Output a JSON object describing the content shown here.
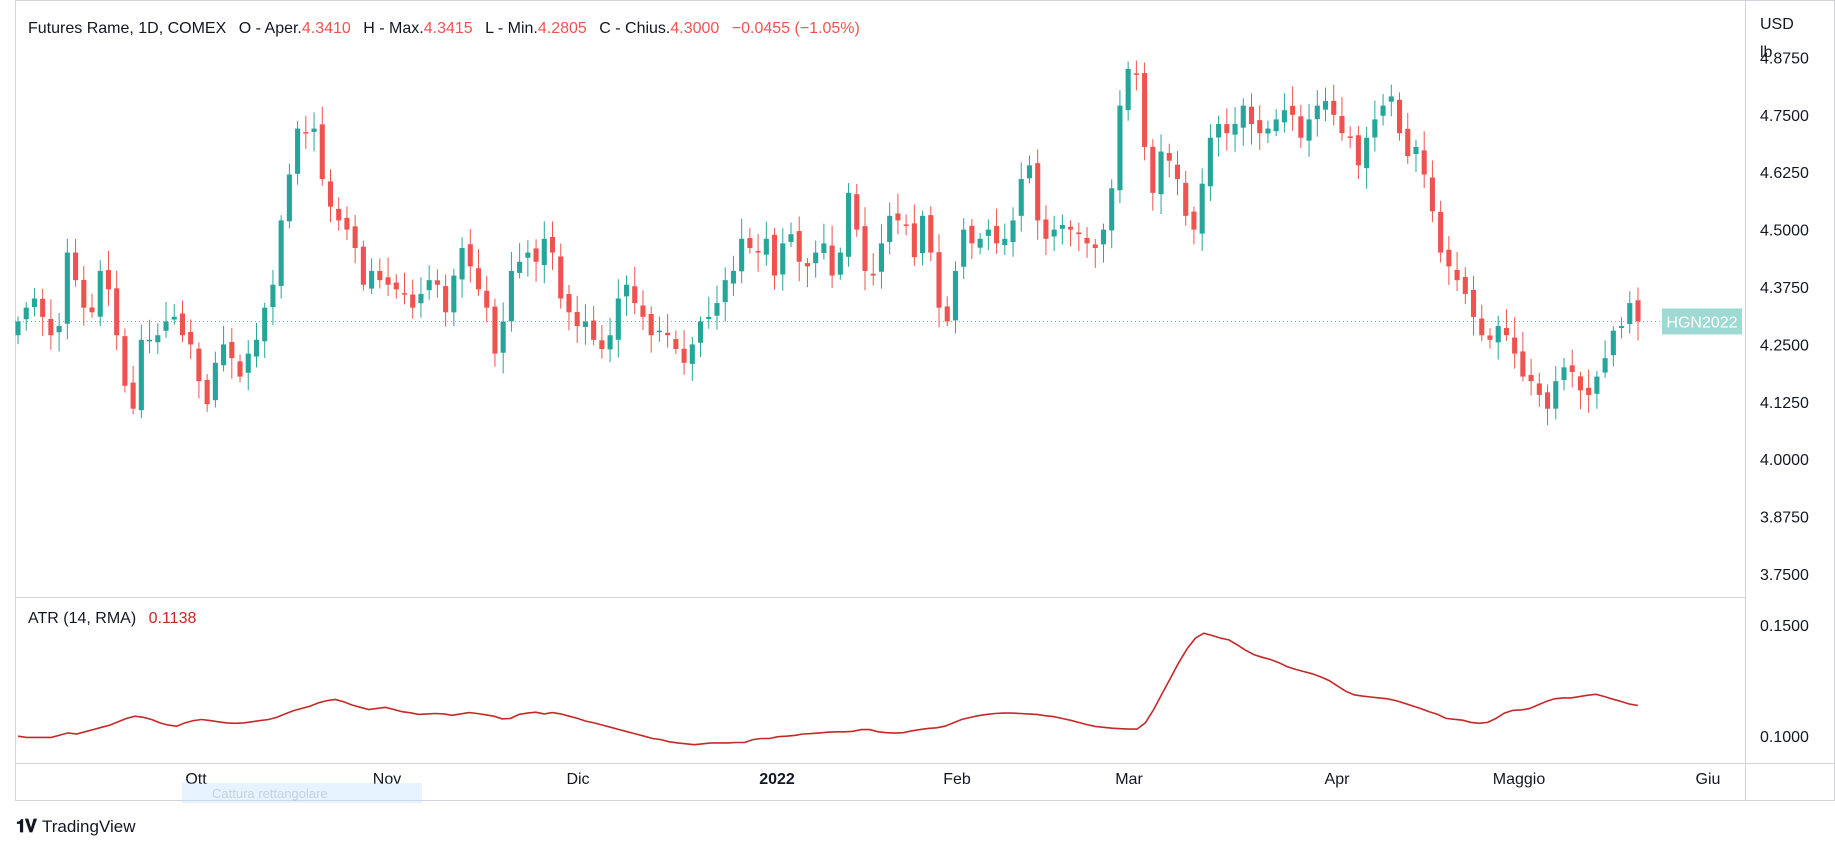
{
  "legend": {
    "symbol": "Futures Rame, 1D, COMEX",
    "o_label": "O - Aper.",
    "o_val": "4.3410",
    "h_label": "H - Max.",
    "h_val": "4.3415",
    "l_label": "L - Min.",
    "l_val": "4.2805",
    "c_label": "C - Chius.",
    "c_val": "4.3000",
    "change": "−0.0455 (−1.05%)"
  },
  "price_axis": {
    "unit_top": "USD",
    "unit_bottom": "lb",
    "ticks": [
      "4.8750",
      "4.7500",
      "4.6250",
      "4.5000",
      "4.3750",
      "4.2500",
      "4.1250",
      "4.0000",
      "3.8750",
      "3.7500"
    ]
  },
  "atr": {
    "label": "ATR (14, RMA)",
    "value": "0.1138",
    "ticks": [
      "0.1500",
      "0.1000"
    ]
  },
  "time_axis": {
    "labels": [
      "Ott",
      "Nov",
      "Dic",
      "2022",
      "Feb",
      "Mar",
      "Apr",
      "Maggio",
      "Giu"
    ]
  },
  "price_tag": "HGN2022",
  "watermark": "Cattura rettangolare",
  "brand": "TradingView",
  "colors": {
    "up": "#26a69a",
    "down": "#ef5350",
    "atr": "#c62828",
    "tag_bg": "#9fd9d3"
  },
  "chart_data": [
    {
      "type": "candlestick",
      "title": "Futures Rame, 1D, COMEX",
      "ylim": [
        3.7,
        5.0
      ],
      "y_ticks": [
        3.75,
        3.875,
        4.0,
        4.125,
        4.25,
        4.375,
        4.5,
        4.625,
        4.75,
        4.875
      ],
      "last_close": 4.3,
      "close": [
        4.3,
        4.33,
        4.35,
        4.31,
        4.27,
        4.29,
        4.45,
        4.39,
        4.33,
        4.32,
        4.41,
        4.37,
        4.27,
        4.16,
        4.11,
        4.26,
        4.26,
        4.27,
        4.3,
        4.31,
        4.27,
        4.25,
        4.17,
        4.12,
        4.21,
        4.25,
        4.22,
        4.18,
        4.23,
        4.26,
        4.33,
        4.38,
        4.52,
        4.62,
        4.72,
        4.71,
        4.72,
        4.61,
        4.55,
        4.52,
        4.5,
        4.46,
        4.38,
        4.41,
        4.39,
        4.38,
        4.37,
        4.36,
        4.33,
        4.36,
        4.39,
        4.38,
        4.32,
        4.4,
        4.46,
        4.42,
        4.37,
        4.33,
        4.23,
        4.3,
        4.41,
        4.43,
        4.45,
        4.43,
        4.48,
        4.45,
        4.35,
        4.32,
        4.29,
        4.3,
        4.26,
        4.24,
        4.27,
        4.35,
        4.38,
        4.34,
        4.31,
        4.27,
        4.28,
        4.27,
        4.24,
        4.21,
        4.25,
        4.3,
        4.31,
        4.34,
        4.39,
        4.41,
        4.48,
        4.46,
        4.45,
        4.48,
        4.4,
        4.47,
        4.49,
        4.43,
        4.42,
        4.45,
        4.47,
        4.4,
        4.45,
        4.58,
        4.5,
        4.41,
        4.4,
        4.47,
        4.53,
        4.52,
        4.51,
        4.44,
        4.53,
        4.45,
        4.33,
        4.3,
        4.41,
        4.5,
        4.47,
        4.48,
        4.5,
        4.47,
        4.48,
        4.52,
        4.61,
        4.64,
        4.52,
        4.48,
        4.5,
        4.51,
        4.5,
        4.49,
        4.47,
        4.46,
        4.5,
        4.59,
        4.77,
        4.85,
        4.84,
        4.68,
        4.58,
        4.67,
        4.65,
        4.61,
        4.53,
        4.5,
        4.6,
        4.7,
        4.73,
        4.71,
        4.73,
        4.77,
        4.73,
        4.71,
        4.72,
        4.74,
        4.76,
        4.75,
        4.7,
        4.74,
        4.77,
        4.78,
        4.75,
        4.71,
        4.7,
        4.64,
        4.7,
        4.74,
        4.77,
        4.79,
        4.71,
        4.66,
        4.68,
        4.62,
        4.54,
        4.45,
        4.42,
        4.39,
        4.36,
        4.31,
        4.27,
        4.26,
        4.29,
        4.27,
        4.23,
        4.18,
        4.17,
        4.14,
        4.11,
        4.17,
        4.2,
        4.19,
        4.15,
        4.14,
        4.18,
        4.22,
        4.28,
        4.29,
        4.34,
        4.3
      ]
    },
    {
      "type": "line",
      "title": "ATR (14, RMA)",
      "ylim": [
        0.088,
        0.162
      ],
      "y_ticks": [
        0.1,
        0.15
      ],
      "last_value": 0.1138,
      "values": [
        0.1,
        0.0995,
        0.0995,
        0.0995,
        0.0995,
        0.1005,
        0.1015,
        0.101,
        0.102,
        0.103,
        0.104,
        0.105,
        0.1065,
        0.108,
        0.109,
        0.1085,
        0.1075,
        0.106,
        0.105,
        0.1045,
        0.106,
        0.107,
        0.1075,
        0.107,
        0.1065,
        0.106,
        0.1058,
        0.106,
        0.1065,
        0.107,
        0.1075,
        0.1085,
        0.11,
        0.1115,
        0.1125,
        0.1135,
        0.115,
        0.116,
        0.1165,
        0.1155,
        0.114,
        0.113,
        0.112,
        0.1125,
        0.113,
        0.112,
        0.111,
        0.1105,
        0.1098,
        0.11,
        0.1102,
        0.11,
        0.1094,
        0.11,
        0.1106,
        0.1102,
        0.1096,
        0.109,
        0.1078,
        0.108,
        0.1098,
        0.1104,
        0.1108,
        0.11,
        0.1106,
        0.11,
        0.109,
        0.108,
        0.1068,
        0.106,
        0.105,
        0.104,
        0.103,
        0.102,
        0.101,
        0.1,
        0.099,
        0.0985,
        0.0975,
        0.097,
        0.0966,
        0.0962,
        0.0966,
        0.097,
        0.097,
        0.097,
        0.0972,
        0.0972,
        0.0985,
        0.099,
        0.099,
        0.0998,
        0.1,
        0.1004,
        0.101,
        0.1012,
        0.1015,
        0.1018,
        0.102,
        0.102,
        0.1022,
        0.103,
        0.103,
        0.102,
        0.1016,
        0.1014,
        0.1016,
        0.1024,
        0.103,
        0.1035,
        0.1038,
        0.1045,
        0.106,
        0.1075,
        0.1084,
        0.1092,
        0.1098,
        0.1102,
        0.1104,
        0.1104,
        0.1102,
        0.11,
        0.1098,
        0.1092,
        0.1088,
        0.108,
        0.1072,
        0.1062,
        0.1052,
        0.1044,
        0.104,
        0.1036,
        0.1034,
        0.1032,
        0.1032,
        0.106,
        0.112,
        0.119,
        0.126,
        0.133,
        0.1392,
        0.144,
        0.1462,
        0.1452,
        0.144,
        0.1432,
        0.141,
        0.1386,
        0.1366,
        0.1354,
        0.1344,
        0.133,
        0.1312,
        0.13,
        0.129,
        0.128,
        0.1266,
        0.125,
        0.1226,
        0.1202,
        0.1186,
        0.118,
        0.1176,
        0.1172,
        0.1168,
        0.116,
        0.1148,
        0.1136,
        0.1124,
        0.111,
        0.1098,
        0.108,
        0.1076,
        0.1072,
        0.1062,
        0.1058,
        0.1062,
        0.108,
        0.1104,
        0.1116,
        0.1118,
        0.1124,
        0.114,
        0.1156,
        0.1168,
        0.1172,
        0.1172,
        0.1178,
        0.1184,
        0.1188,
        0.1178,
        0.1166,
        0.1156,
        0.1144,
        0.1138
      ]
    }
  ]
}
